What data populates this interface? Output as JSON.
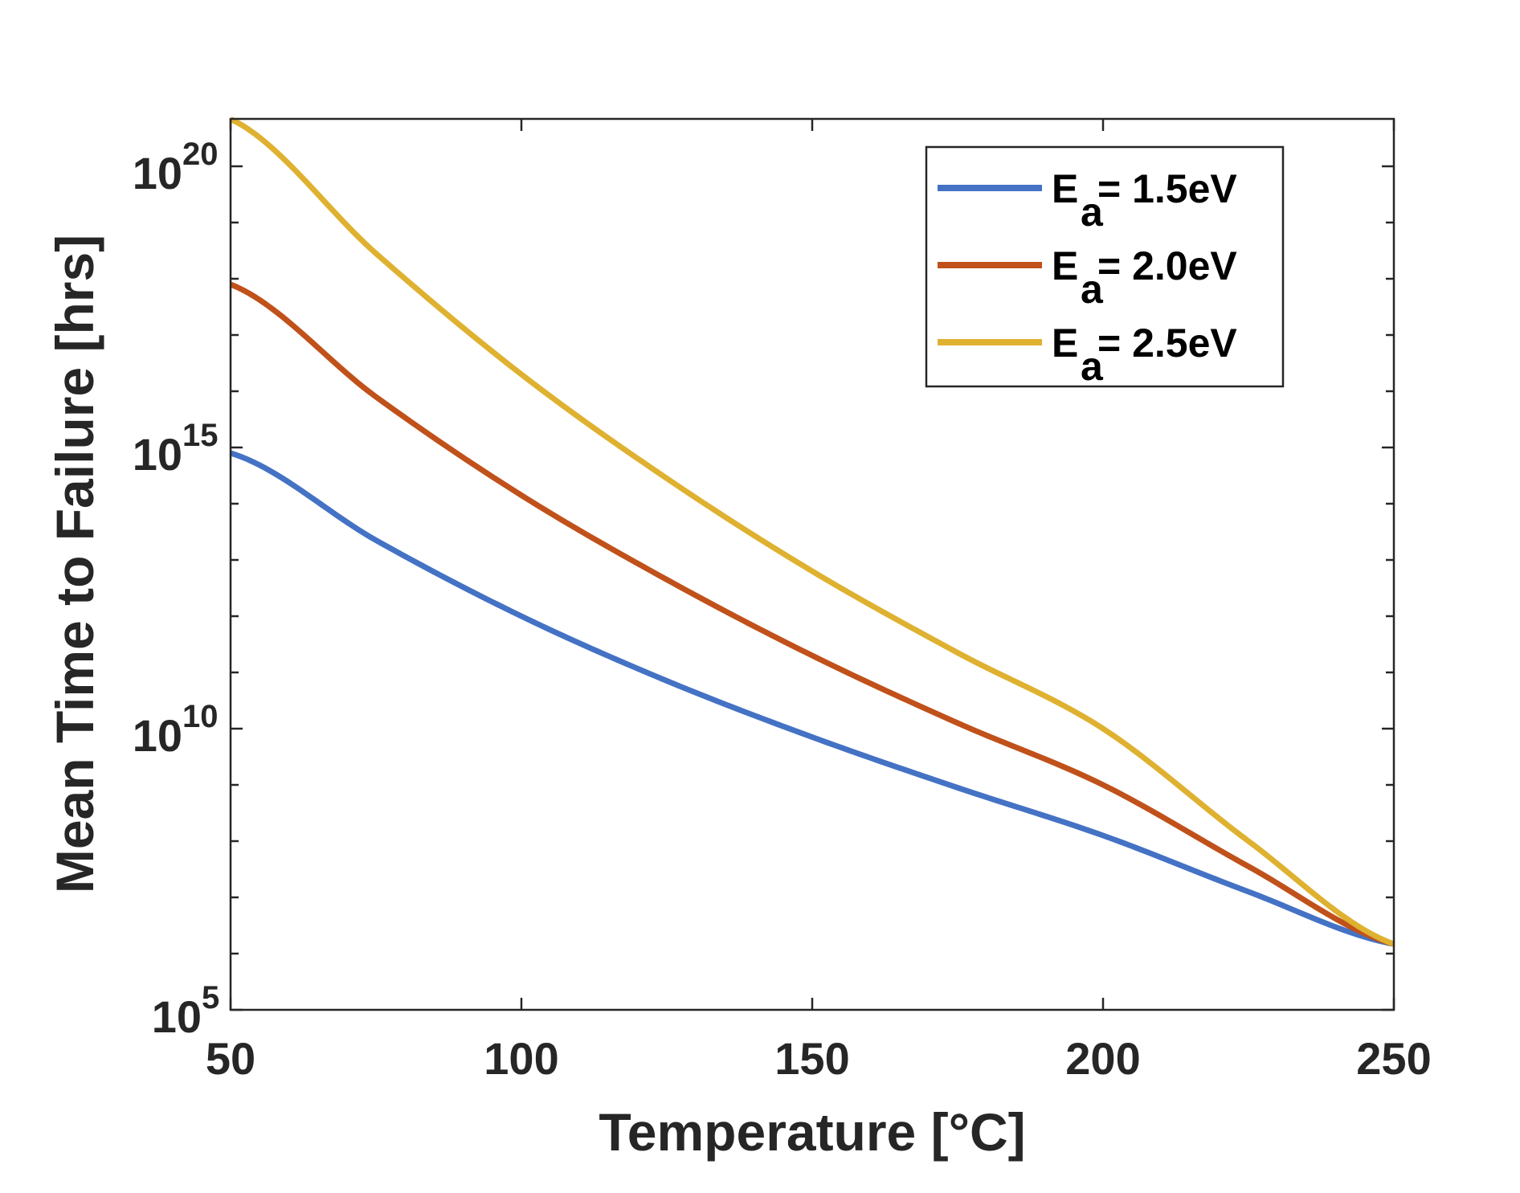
{
  "chart_data": {
    "type": "line",
    "title": "",
    "xlabel": "Temperature [°C]",
    "ylabel": "Mean Time to Failure [hrs]",
    "xlim": [
      50,
      250
    ],
    "ylim": [
      100000,
      7e+20
    ],
    "yscale": "log",
    "grid": false,
    "legend_position": "top-right",
    "x_ticks": [
      50,
      100,
      150,
      200,
      250
    ],
    "x_tick_labels": [
      "50",
      "100",
      "150",
      "200",
      "250"
    ],
    "y_ticks_log10": [
      5,
      10,
      15,
      20
    ],
    "y_tick_labels": [
      {
        "base": "10",
        "exp": "5"
      },
      {
        "base": "10",
        "exp": "10"
      },
      {
        "base": "10",
        "exp": "15"
      },
      {
        "base": "10",
        "exp": "20"
      }
    ],
    "x": [
      50,
      75,
      100,
      125,
      150,
      175,
      200,
      225,
      250
    ],
    "series": [
      {
        "name": "Ea = 1.5eV",
        "legend": {
          "main": "E",
          "sub": "a",
          "rest": " = 1.5eV"
        },
        "color": "#4472C4",
        "log10_values": [
          14.9,
          13.35,
          12.0,
          10.85,
          9.85,
          8.95,
          8.1,
          7.1,
          6.17
        ]
      },
      {
        "name": "Ea = 2.0eV",
        "legend": {
          "main": "E",
          "sub": "a",
          "rest": " = 2.0eV"
        },
        "color": "#C0511A",
        "log10_values": [
          17.9,
          15.9,
          14.15,
          12.65,
          11.3,
          10.1,
          9.0,
          7.55,
          6.17
        ]
      },
      {
        "name": "Ea = 2.5eV",
        "legend": {
          "main": "E",
          "sub": "a",
          "rest": " = 2.5eV"
        },
        "color": "#DFB130",
        "log10_values": [
          20.84,
          18.45,
          16.3,
          14.45,
          12.8,
          11.35,
          10.0,
          8.0,
          6.17
        ]
      }
    ]
  }
}
